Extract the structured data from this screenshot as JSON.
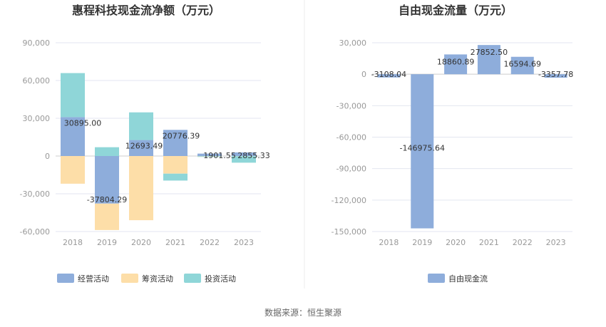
{
  "source": "数据来源：恒生聚源",
  "colors": {
    "operating": "#8eaddb",
    "financing": "#fddea8",
    "investing": "#8fd6d8",
    "fcf": "#8eaddb",
    "grid": "#e3e6f0",
    "axis": "#cccccc"
  },
  "chart_data": [
    {
      "type": "bar",
      "stacked": true,
      "title": "惠程科技现金流净额（万元）",
      "categories": [
        "2018",
        "2019",
        "2020",
        "2021",
        "2022",
        "2023"
      ],
      "ylim": [
        -60000,
        90000
      ],
      "yticks": [
        90000,
        60000,
        30000,
        0,
        -30000,
        -60000
      ],
      "ytick_labels": [
        "90,000",
        "60,000",
        "30,000",
        "0",
        "-30,000",
        "-60,000"
      ],
      "grid": true,
      "legend_position": "bottom-left",
      "series": [
        {
          "name": "经营活动",
          "color_key": "operating",
          "values": [
            30895.0,
            -37804.29,
            12693.49,
            20776.39,
            1901.55,
            2855.33
          ]
        },
        {
          "name": "筹资活动",
          "color_key": "financing",
          "values": [
            -22000,
            -21000,
            -51000,
            -14000,
            -200,
            -100
          ]
        },
        {
          "name": "投资活动",
          "color_key": "investing",
          "values": [
            35000,
            7000,
            22000,
            -5500,
            -500,
            -5200
          ]
        }
      ],
      "data_labels": [
        "30895.00",
        "-37804.29",
        "12693.49",
        "20776.39",
        "1901.55",
        "2855.33"
      ]
    },
    {
      "type": "bar",
      "title": "自由现金流量（万元）",
      "categories": [
        "2018",
        "2019",
        "2020",
        "2021",
        "2022",
        "2023"
      ],
      "ylim": [
        -150000,
        30000
      ],
      "yticks": [
        30000,
        0,
        -30000,
        -60000,
        -90000,
        -120000,
        -150000
      ],
      "ytick_labels": [
        "30,000",
        "0",
        "-30,000",
        "-60,000",
        "-90,000",
        "-120,000",
        "-150,000"
      ],
      "grid": true,
      "legend_position": "bottom-center",
      "series": [
        {
          "name": "自由现金流",
          "color_key": "fcf",
          "values": [
            -3108.04,
            -146975.64,
            18860.89,
            27852.5,
            16594.69,
            -3357.78
          ]
        }
      ],
      "data_labels": [
        "-3108.04",
        "-146975.64",
        "18860.89",
        "27852.50",
        "16594.69",
        "-3357.78"
      ]
    }
  ]
}
